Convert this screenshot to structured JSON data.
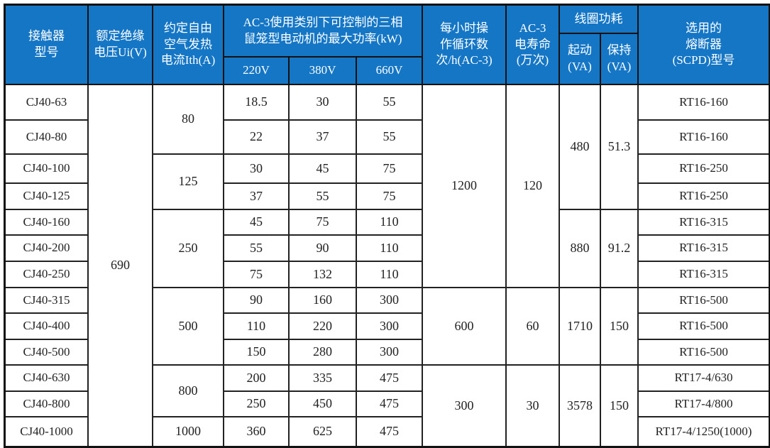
{
  "colors": {
    "header_bg": "#1476c5",
    "header_text": "#ffffff",
    "border": "#222222",
    "body_text": "#222222"
  },
  "header": {
    "model": "接触器\n型号",
    "ui": "额定绝缘\n电压Ui(V)",
    "ith": "约定自由\n空气发热\n电流Ith(A)",
    "power_group": "AC-3使用类别下可控制的三相\n鼠笼型电动机的最大功率(kW)",
    "v220": "220V",
    "v380": "380V",
    "v660": "660V",
    "ops": "每小时操\n作循环数\n次/h(AC-3)",
    "life": "AC-3\n电寿命\n(万次)",
    "coil_group": "线圈功耗",
    "coil_start": "起动\n(VA)",
    "coil_hold": "保持\n(VA)",
    "fuse": "选用的\n熔断器\n(SCPD)型号"
  },
  "shared": {
    "ui_value": "690"
  },
  "merged": {
    "ith": [
      "80",
      "125",
      "250",
      "500",
      "800",
      "1000"
    ],
    "ops": [
      "1200",
      "600",
      "300"
    ],
    "life": [
      "120",
      "60",
      "30"
    ],
    "start": [
      "480",
      "880",
      "1710",
      "3578"
    ],
    "hold": [
      "51.3",
      "91.2",
      "150",
      "150"
    ]
  },
  "rows": [
    {
      "model": "CJ40-63",
      "p220": "18.5",
      "p380": "30",
      "p660": "55",
      "fuse": "RT16-160"
    },
    {
      "model": "CJ40-80",
      "p220": "22",
      "p380": "37",
      "p660": "55",
      "fuse": "RT16-160"
    },
    {
      "model": "CJ40-100",
      "p220": "30",
      "p380": "45",
      "p660": "75",
      "fuse": "RT16-250"
    },
    {
      "model": "CJ40-125",
      "p220": "37",
      "p380": "55",
      "p660": "75",
      "fuse": "RT16-250"
    },
    {
      "model": "CJ40-160",
      "p220": "45",
      "p380": "75",
      "p660": "110",
      "fuse": "RT16-315"
    },
    {
      "model": "CJ40-200",
      "p220": "55",
      "p380": "90",
      "p660": "110",
      "fuse": "RT16-315"
    },
    {
      "model": "CJ40-250",
      "p220": "75",
      "p380": "132",
      "p660": "110",
      "fuse": "RT16-315"
    },
    {
      "model": "CJ40-315",
      "p220": "90",
      "p380": "160",
      "p660": "300",
      "fuse": "RT16-500"
    },
    {
      "model": "CJ40-400",
      "p220": "110",
      "p380": "220",
      "p660": "300",
      "fuse": "RT16-500"
    },
    {
      "model": "CJ40-500",
      "p220": "150",
      "p380": "280",
      "p660": "300",
      "fuse": "RT16-500"
    },
    {
      "model": "CJ40-630",
      "p220": "200",
      "p380": "335",
      "p660": "475",
      "fuse": "RT17-4/630"
    },
    {
      "model": "CJ40-800",
      "p220": "250",
      "p380": "450",
      "p660": "475",
      "fuse": "RT17-4/800"
    },
    {
      "model": "CJ40-1000",
      "p220": "360",
      "p380": "625",
      "p660": "475",
      "fuse": "RT17-4/1250(1000)"
    }
  ]
}
